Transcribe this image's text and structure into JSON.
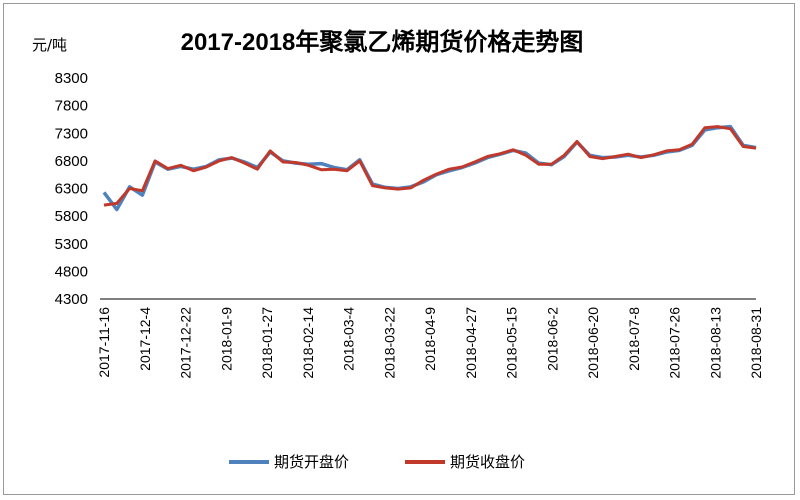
{
  "chart_data": {
    "type": "line",
    "title": "2017-2018年聚氯乙烯期货价格走势图",
    "ylabel": "元/吨",
    "xlabel": "",
    "ylim": [
      4300,
      8300
    ],
    "yticks": [
      8300,
      7800,
      7300,
      6800,
      6300,
      5800,
      5300,
      4800,
      4300
    ],
    "grid": false,
    "legend_position": "bottom",
    "x": [
      "2017-11-16",
      "2017-11-20",
      "2017-11-24",
      "2017-11-28",
      "2017-12-4",
      "2017-12-8",
      "2017-12-13",
      "2017-12-18",
      "2017-12-22",
      "2017-12-28",
      "2018-01-3",
      "2018-01-9",
      "2018-01-15",
      "2018-01-21",
      "2018-01-27",
      "2018-02-2",
      "2018-02-8",
      "2018-02-14",
      "2018-02-22",
      "2018-02-28",
      "2018-03-4",
      "2018-03-8",
      "2018-03-13",
      "2018-03-18",
      "2018-03-22",
      "2018-03-28",
      "2018-04-3",
      "2018-04-9",
      "2018-04-15",
      "2018-04-21",
      "2018-04-27",
      "2018-05-3",
      "2018-05-9",
      "2018-05-15",
      "2018-05-21",
      "2018-05-27",
      "2018-06-2",
      "2018-06-8",
      "2018-06-14",
      "2018-06-20",
      "2018-06-26",
      "2018-07-2",
      "2018-07-8",
      "2018-07-14",
      "2018-07-20",
      "2018-07-26",
      "2018-08-1",
      "2018-08-7",
      "2018-08-13",
      "2018-08-19",
      "2018-08-25",
      "2018-08-31"
    ],
    "xtick_labels": [
      "2017-11-16",
      "2017-12-4",
      "2017-12-22",
      "2018-01-9",
      "2018-01-27",
      "2018-02-14",
      "2018-03-4",
      "2018-03-22",
      "2018-04-9",
      "2018-04-27",
      "2018-05-15",
      "2018-06-2",
      "2018-06-20",
      "2018-07-8",
      "2018-07-26",
      "2018-08-13",
      "2018-08-31"
    ],
    "series": [
      {
        "name": "期货开盘价",
        "color": "#4f81bd",
        "values": [
          6230,
          5920,
          6330,
          6180,
          6780,
          6650,
          6700,
          6650,
          6700,
          6820,
          6850,
          6780,
          6680,
          6960,
          6800,
          6760,
          6740,
          6750,
          6680,
          6640,
          6820,
          6380,
          6320,
          6300,
          6330,
          6420,
          6550,
          6620,
          6680,
          6760,
          6860,
          6920,
          6990,
          6940,
          6760,
          6730,
          6880,
          7140,
          6900,
          6860,
          6870,
          6900,
          6870,
          6900,
          6960,
          6990,
          7080,
          7360,
          7400,
          7420,
          7080,
          7040
        ]
      },
      {
        "name": "期货收盘价",
        "color": "#c0392b",
        "values": [
          6000,
          6030,
          6300,
          6260,
          6800,
          6660,
          6720,
          6620,
          6690,
          6800,
          6860,
          6760,
          6650,
          6980,
          6780,
          6770,
          6720,
          6640,
          6650,
          6620,
          6800,
          6350,
          6310,
          6290,
          6310,
          6450,
          6560,
          6650,
          6690,
          6780,
          6880,
          6930,
          7000,
          6900,
          6740,
          6740,
          6900,
          7150,
          6880,
          6840,
          6880,
          6920,
          6860,
          6910,
          6980,
          7000,
          7100,
          7400,
          7420,
          7380,
          7060,
          7030
        ]
      }
    ]
  }
}
